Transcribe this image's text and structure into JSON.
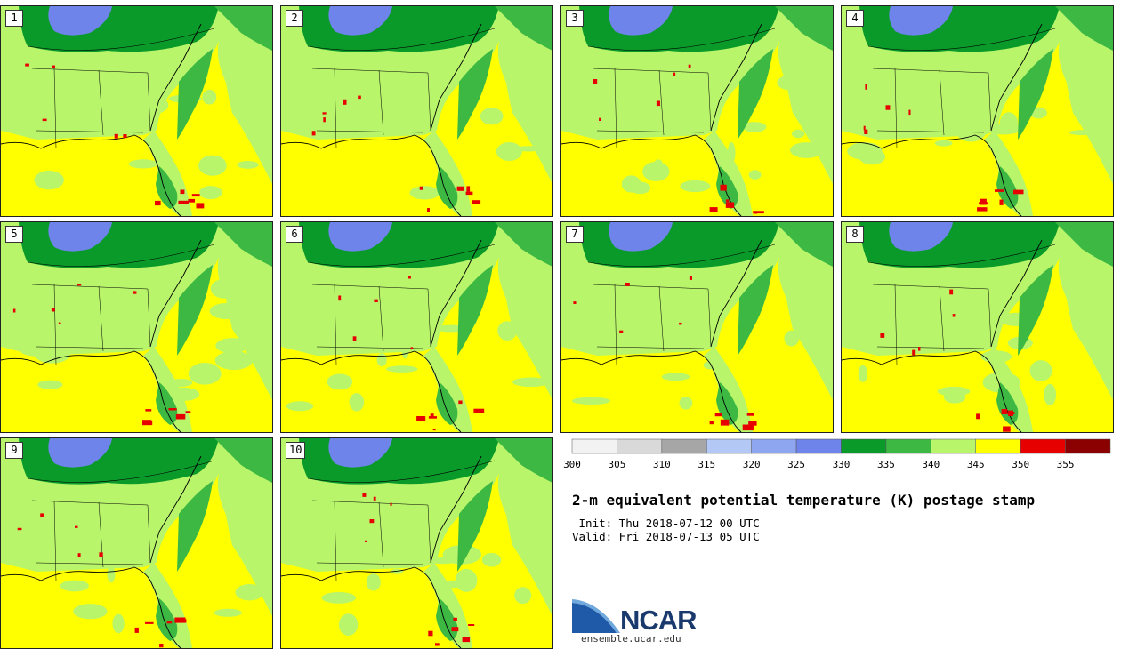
{
  "map": {
    "title": "2-m equivalent potential temperature (K) postage stamp",
    "init": " Init: Thu 2018-07-12 00 UTC",
    "valid": "Valid: Fri 2018-07-13 05 UTC",
    "members": [
      "1",
      "2",
      "3",
      "4",
      "5",
      "6",
      "7",
      "8",
      "9",
      "10"
    ],
    "logo": {
      "word": "NCAR",
      "url": "ensemble.ucar.edu"
    }
  },
  "colorbar": {
    "ticks": [
      "300",
      "305",
      "310",
      "315",
      "320",
      "325",
      "330",
      "335",
      "340",
      "345",
      "350",
      "355"
    ],
    "colors": [
      "#f2f2f2",
      "#d9d9d9",
      "#a6a6a6",
      "#b4c8f5",
      "#8ea6f0",
      "#6f84ea",
      "#0a9a2a",
      "#3cb843",
      "#b8f56a",
      "#ffff00",
      "#e60000",
      "#8b0000"
    ]
  },
  "fill_colors": {
    "sea_base": "#ffff00",
    "land_dry": "#b8f56a",
    "mid_green": "#3cb843",
    "dark_green": "#0a9a2a",
    "cool_blue": "#6f84ea",
    "hot_red": "#e60000",
    "boundary": "#000000"
  }
}
